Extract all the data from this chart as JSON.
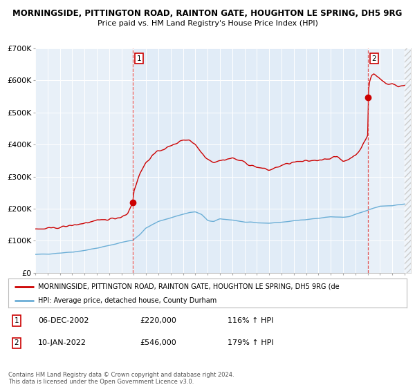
{
  "title": "MORNINGSIDE, PITTINGTON ROAD, RAINTON GATE, HOUGHTON LE SPRING, DH5 9RG",
  "subtitle": "Price paid vs. HM Land Registry's House Price Index (HPI)",
  "background_color": "#ffffff",
  "plot_bg_color": "#e8f0f8",
  "hpi_color": "#6baed6",
  "price_color": "#cc0000",
  "vline_color": "#dd4444",
  "marker_color": "#cc0000",
  "ylim": [
    0,
    700000
  ],
  "yticks": [
    0,
    100000,
    200000,
    300000,
    400000,
    500000,
    600000,
    700000
  ],
  "ytick_labels": [
    "£0",
    "£100K",
    "£200K",
    "£300K",
    "£400K",
    "£500K",
    "£600K",
    "£700K"
  ],
  "sale1_date_label": "06-DEC-2002",
  "sale1_price": 220000,
  "sale1_pct": "116% ↑ HPI",
  "sale1_x": 2002.92,
  "sale2_date_label": "10-JAN-2022",
  "sale2_price": 546000,
  "sale2_pct": "179% ↑ HPI",
  "sale2_x": 2022.03,
  "legend_line1": "MORNINGSIDE, PITTINGTON ROAD, RAINTON GATE, HOUGHTON LE SPRING, DH5 9RG (de",
  "legend_line2": "HPI: Average price, detached house, County Durham",
  "footnote": "Contains HM Land Registry data © Crown copyright and database right 2024.\nThis data is licensed under the Open Government Licence v3.0.",
  "xlim_start": 1995.0,
  "xlim_end": 2025.5
}
